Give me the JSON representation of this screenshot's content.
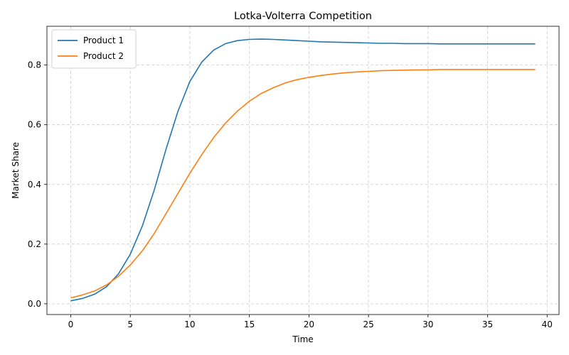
{
  "chart_data": {
    "type": "line",
    "title": "Lotka-Volterra Competition",
    "xlabel": "Time",
    "ylabel": "Market Share",
    "xlim": [
      -2,
      41
    ],
    "ylim": [
      -0.036,
      0.93
    ],
    "xticks": [
      0,
      5,
      10,
      15,
      20,
      25,
      30,
      35,
      40
    ],
    "yticks": [
      0.0,
      0.2,
      0.4,
      0.6,
      0.8
    ],
    "xtick_labels": [
      "0",
      "5",
      "10",
      "15",
      "20",
      "25",
      "30",
      "35",
      "40"
    ],
    "ytick_labels": [
      "0.0",
      "0.2",
      "0.4",
      "0.6",
      "0.8"
    ],
    "grid": true,
    "grid_style": "dashed",
    "legend_position": "top-left",
    "x": [
      0,
      1,
      2,
      3,
      4,
      5,
      6,
      7,
      8,
      9,
      10,
      11,
      12,
      13,
      14,
      15,
      16,
      17,
      18,
      19,
      20,
      21,
      22,
      23,
      24,
      25,
      26,
      27,
      28,
      29,
      30,
      31,
      32,
      33,
      34,
      35,
      36,
      37,
      38,
      39
    ],
    "series": [
      {
        "name": "Product 1",
        "color": "#1f77b4",
        "values": [
          0.01,
          0.018,
          0.032,
          0.057,
          0.1,
          0.166,
          0.26,
          0.38,
          0.518,
          0.645,
          0.745,
          0.81,
          0.85,
          0.872,
          0.882,
          0.886,
          0.887,
          0.886,
          0.884,
          0.882,
          0.88,
          0.878,
          0.877,
          0.876,
          0.875,
          0.874,
          0.873,
          0.873,
          0.872,
          0.872,
          0.872,
          0.871,
          0.871,
          0.871,
          0.871,
          0.871,
          0.871,
          0.871,
          0.871,
          0.871
        ]
      },
      {
        "name": "Product 2",
        "color": "#ff7f0e",
        "values": [
          0.02,
          0.03,
          0.043,
          0.063,
          0.092,
          0.13,
          0.177,
          0.235,
          0.302,
          0.37,
          0.437,
          0.5,
          0.557,
          0.606,
          0.646,
          0.679,
          0.705,
          0.724,
          0.74,
          0.751,
          0.759,
          0.765,
          0.77,
          0.774,
          0.777,
          0.779,
          0.781,
          0.782,
          0.783,
          0.784,
          0.784,
          0.785,
          0.785,
          0.785,
          0.785,
          0.785,
          0.785,
          0.785,
          0.785,
          0.785
        ]
      }
    ]
  }
}
